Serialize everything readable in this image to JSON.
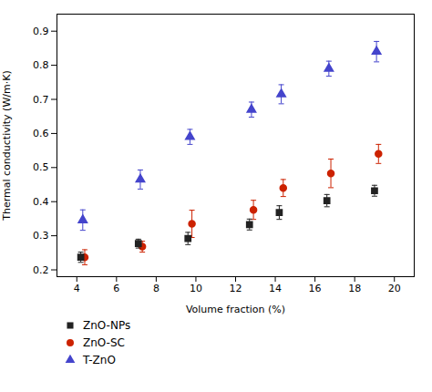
{
  "chart_data": {
    "type": "scatter",
    "xlabel": "Volume fraction (%)",
    "ylabel": "Thermal conductivity (W/m·K)",
    "series": [
      {
        "name": "ZnO-NPs",
        "color": "#222222",
        "marker": "square",
        "x": [
          4.2,
          7.1,
          9.6,
          12.7,
          14.2,
          16.6,
          19.0
        ],
        "values": [
          0.237,
          0.277,
          0.292,
          0.333,
          0.368,
          0.403,
          0.432
        ],
        "yerr": [
          0.015,
          0.013,
          0.018,
          0.016,
          0.02,
          0.018,
          0.016
        ]
      },
      {
        "name": "ZnO-SC",
        "color": "#cc2200",
        "marker": "circle",
        "x": [
          4.4,
          7.3,
          9.8,
          12.9,
          14.4,
          16.8,
          19.2
        ],
        "values": [
          0.237,
          0.268,
          0.335,
          0.376,
          0.44,
          0.483,
          0.54
        ],
        "yerr": [
          0.022,
          0.016,
          0.04,
          0.028,
          0.025,
          0.042,
          0.028
        ]
      },
      {
        "name": "T-ZnO",
        "color": "#4444cc",
        "marker": "triangle",
        "x": [
          4.3,
          7.2,
          9.7,
          12.8,
          14.3,
          16.7,
          19.1
        ],
        "values": [
          0.346,
          0.465,
          0.59,
          0.67,
          0.715,
          0.79,
          0.84
        ],
        "yerr": [
          0.03,
          0.028,
          0.022,
          0.022,
          0.028,
          0.022,
          0.03
        ]
      }
    ],
    "xlim": [
      3,
      21
    ],
    "ylim": [
      0.18,
      0.95
    ],
    "xticks": [
      4,
      6,
      8,
      10,
      12,
      14,
      16,
      18,
      20
    ],
    "yticks": [
      0.2,
      0.3,
      0.4,
      0.5,
      0.6,
      0.7,
      0.8,
      0.9
    ],
    "grid": false,
    "legend": "bottom"
  }
}
